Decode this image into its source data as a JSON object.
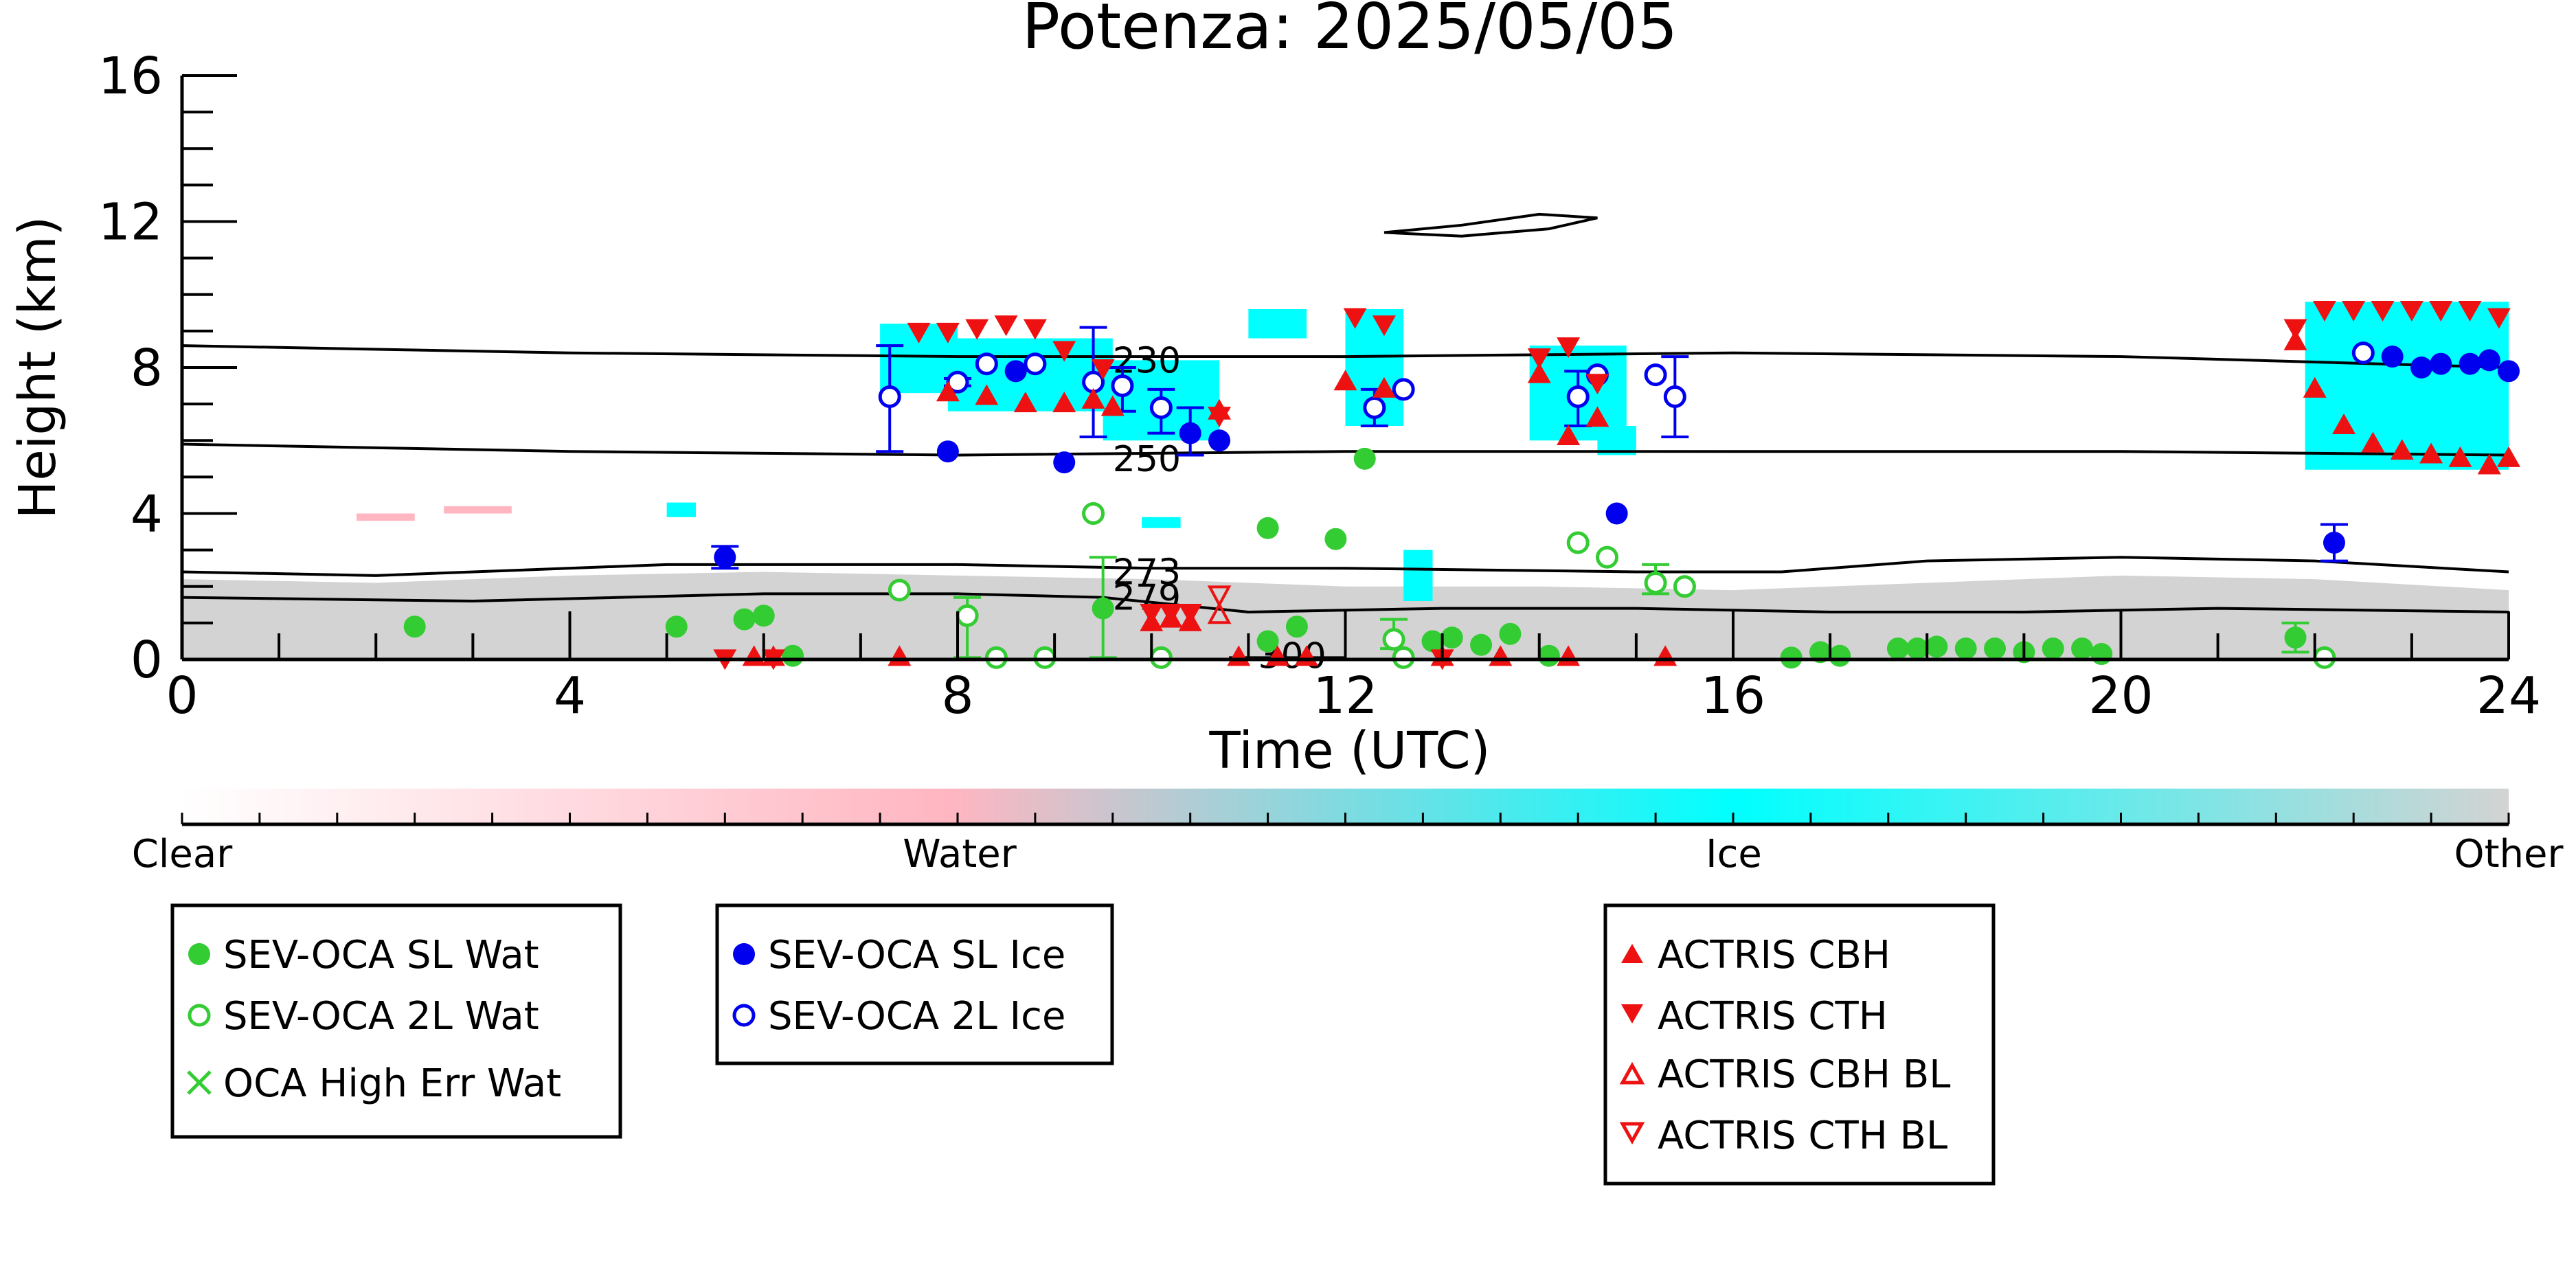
{
  "chart_data": {
    "type": "scatter",
    "title": "Potenza: 2025/05/05",
    "xlabel": "Time (UTC)",
    "ylabel": "Height (km)",
    "xlim": [
      0,
      24
    ],
    "ylim": [
      0,
      16
    ],
    "xticks": [
      0,
      4,
      8,
      12,
      16,
      20,
      24
    ],
    "yticks": [
      0,
      4,
      8,
      12,
      16
    ],
    "grid": false,
    "colorbar": {
      "labels": [
        {
          "text": "Clear",
          "pos": 0
        },
        {
          "text": "Water",
          "pos": 0.33
        },
        {
          "text": "Ice",
          "pos": 0.667
        },
        {
          "text": "Other",
          "pos": 1
        }
      ],
      "colors": {
        "clear": "#ffffff",
        "water": "#ffb6c1",
        "ice": "#00ffff",
        "other": "#d3d3d3"
      }
    },
    "contours": [
      {
        "label": "230",
        "points": [
          [
            0,
            8.6
          ],
          [
            4,
            8.4
          ],
          [
            8,
            8.3
          ],
          [
            12,
            8.3
          ],
          [
            16,
            8.4
          ],
          [
            20,
            8.3
          ],
          [
            24,
            8.0
          ]
        ],
        "label_at": [
          9.6,
          8.2
        ]
      },
      {
        "label": "250",
        "points": [
          [
            0,
            5.9
          ],
          [
            4,
            5.7
          ],
          [
            8,
            5.6
          ],
          [
            12,
            5.7
          ],
          [
            16,
            5.7
          ],
          [
            20,
            5.7
          ],
          [
            24,
            5.6
          ]
        ],
        "label_at": [
          9.6,
          5.5
        ]
      },
      {
        "label": "273",
        "points": [
          [
            0,
            2.4
          ],
          [
            2,
            2.3
          ],
          [
            5,
            2.6
          ],
          [
            8,
            2.6
          ],
          [
            10,
            2.5
          ],
          [
            12,
            2.5
          ],
          [
            15,
            2.4
          ],
          [
            16.5,
            2.4
          ],
          [
            18,
            2.7
          ],
          [
            20,
            2.8
          ],
          [
            22,
            2.7
          ],
          [
            24,
            2.4
          ]
        ],
        "label_at": [
          9.6,
          2.4
        ]
      },
      {
        "label": "279",
        "points": [
          [
            0,
            1.7
          ],
          [
            3,
            1.6
          ],
          [
            6,
            1.8
          ],
          [
            8,
            1.8
          ],
          [
            9.5,
            1.7
          ],
          [
            11,
            1.3
          ],
          [
            13,
            1.4
          ],
          [
            15,
            1.4
          ],
          [
            17,
            1.3
          ],
          [
            19,
            1.3
          ],
          [
            21,
            1.4
          ],
          [
            24,
            1.3
          ]
        ],
        "label_at": [
          9.6,
          1.7
        ]
      },
      {
        "label": "300",
        "points": [
          [
            10.8,
            0.05
          ],
          [
            12,
            0.05
          ]
        ],
        "label_at": [
          11.1,
          0.1
        ]
      }
    ],
    "high_contour": {
      "points": [
        [
          12.4,
          11.7
        ],
        [
          13.2,
          11.9
        ],
        [
          14,
          12.2
        ],
        [
          14.6,
          12.1
        ],
        [
          14.1,
          11.8
        ],
        [
          13.2,
          11.6
        ],
        [
          12.4,
          11.7
        ]
      ]
    },
    "cloud_mask": {
      "ice": [
        {
          "x0": 7.2,
          "x1": 8.0,
          "y0": 7.3,
          "y1": 9.2
        },
        {
          "x0": 7.9,
          "x1": 9.6,
          "y0": 6.8,
          "y1": 8.8
        },
        {
          "x0": 9.5,
          "x1": 10.7,
          "y0": 6.0,
          "y1": 8.2
        },
        {
          "x0": 11.0,
          "x1": 11.6,
          "y0": 8.8,
          "y1": 9.6
        },
        {
          "x0": 12.0,
          "x1": 12.6,
          "y0": 6.4,
          "y1": 9.6
        },
        {
          "x0": 13.9,
          "x1": 14.9,
          "y0": 6.0,
          "y1": 8.6
        },
        {
          "x0": 14.6,
          "x1": 15.0,
          "y0": 5.6,
          "y1": 6.4
        },
        {
          "x0": 21.9,
          "x1": 24.0,
          "y0": 5.2,
          "y1": 9.8
        },
        {
          "x0": 5.0,
          "x1": 5.3,
          "y0": 3.9,
          "y1": 4.3
        },
        {
          "x0": 9.9,
          "x1": 10.3,
          "y0": 3.6,
          "y1": 3.9
        },
        {
          "x0": 12.6,
          "x1": 12.9,
          "y0": 1.6,
          "y1": 3.0
        }
      ],
      "water": [
        {
          "x0": 1.8,
          "x1": 2.4,
          "y0": 3.8,
          "y1": 4.0
        },
        {
          "x0": 2.7,
          "x1": 3.4,
          "y0": 4.0,
          "y1": 4.2
        }
      ],
      "other_top": [
        [
          0,
          2.2
        ],
        [
          2,
          2.1
        ],
        [
          4,
          2.3
        ],
        [
          6,
          2.4
        ],
        [
          8,
          2.3
        ],
        [
          10,
          2.2
        ],
        [
          12,
          2.0
        ],
        [
          14,
          2.0
        ],
        [
          16,
          1.9
        ],
        [
          18,
          2.1
        ],
        [
          20,
          2.3
        ],
        [
          22,
          2.2
        ],
        [
          24,
          1.9
        ]
      ]
    },
    "series": [
      {
        "name": "SEV-OCA SL Wat",
        "marker": "filled-circle",
        "color": "#33cc33",
        "points": [
          [
            2.4,
            0.9
          ],
          [
            5.1,
            0.9
          ],
          [
            5.8,
            1.1
          ],
          [
            6.0,
            1.2
          ],
          [
            6.3,
            0.1
          ],
          [
            9.5,
            1.4
          ],
          [
            11.2,
            0.5
          ],
          [
            11.5,
            0.9
          ],
          [
            11.9,
            3.3
          ],
          [
            11.2,
            3.6
          ],
          [
            12.2,
            5.5
          ],
          [
            12.9,
            0.5
          ],
          [
            13.1,
            0.6
          ],
          [
            13.4,
            0.4
          ],
          [
            13.7,
            0.7
          ],
          [
            14.1,
            0.1
          ],
          [
            16.6,
            0.05
          ],
          [
            16.9,
            0.2
          ],
          [
            17.1,
            0.1
          ],
          [
            17.7,
            0.3
          ],
          [
            17.9,
            0.3
          ],
          [
            18.1,
            0.35
          ],
          [
            18.4,
            0.3
          ],
          [
            18.7,
            0.3
          ],
          [
            19.0,
            0.2
          ],
          [
            19.3,
            0.3
          ],
          [
            19.6,
            0.3
          ],
          [
            19.8,
            0.15
          ],
          [
            21.8,
            0.6
          ]
        ]
      },
      {
        "name": "SEV-OCA 2L Wat",
        "marker": "open-circle",
        "color": "#33cc33",
        "points": [
          [
            7.4,
            1.9
          ],
          [
            8.1,
            1.2
          ],
          [
            8.4,
            0.05
          ],
          [
            8.9,
            0.05
          ],
          [
            9.4,
            4.0
          ],
          [
            10.1,
            0.05
          ],
          [
            12.5,
            0.55
          ],
          [
            12.6,
            0.05
          ],
          [
            14.4,
            3.2
          ],
          [
            14.7,
            2.8
          ],
          [
            15.2,
            2.1
          ],
          [
            15.5,
            2.0
          ],
          [
            22.1,
            0.05
          ]
        ]
      },
      {
        "name": "OCA High Err Wat",
        "marker": "x",
        "color": "#33cc33",
        "points": []
      },
      {
        "name": "SEV-OCA SL Ice",
        "marker": "filled-circle",
        "color": "#0000ee",
        "points": [
          [
            5.6,
            2.8
          ],
          [
            7.9,
            5.7
          ],
          [
            8.6,
            7.9
          ],
          [
            9.1,
            5.4
          ],
          [
            10.4,
            6.2
          ],
          [
            10.7,
            6.0
          ],
          [
            14.8,
            4.0
          ],
          [
            22.2,
            3.2
          ],
          [
            22.8,
            8.3
          ],
          [
            23.1,
            8.0
          ],
          [
            23.3,
            8.1
          ],
          [
            23.6,
            8.1
          ],
          [
            23.8,
            8.2
          ],
          [
            24.0,
            7.9
          ]
        ]
      },
      {
        "name": "SEV-OCA 2L Ice",
        "marker": "open-circle",
        "color": "#0000ee",
        "points": [
          [
            7.3,
            7.2
          ],
          [
            8.0,
            7.6
          ],
          [
            8.3,
            8.1
          ],
          [
            8.8,
            8.1
          ],
          [
            9.4,
            7.6
          ],
          [
            9.7,
            7.5
          ],
          [
            10.1,
            6.9
          ],
          [
            12.3,
            6.9
          ],
          [
            12.6,
            7.4
          ],
          [
            14.4,
            7.2
          ],
          [
            14.6,
            7.8
          ],
          [
            15.2,
            7.8
          ],
          [
            15.4,
            7.2
          ],
          [
            22.5,
            8.4
          ]
        ]
      },
      {
        "name": "ACTRIS CBH",
        "marker": "triangle-up",
        "color": "#ee1111",
        "points": [
          [
            7.9,
            7.3
          ],
          [
            8.3,
            7.2
          ],
          [
            8.7,
            7.0
          ],
          [
            9.1,
            7.0
          ],
          [
            9.4,
            7.1
          ],
          [
            9.6,
            6.9
          ],
          [
            10.0,
            1.0
          ],
          [
            10.2,
            1.1
          ],
          [
            10.4,
            1.0
          ],
          [
            10.7,
            6.8
          ],
          [
            12.0,
            7.6
          ],
          [
            12.4,
            7.4
          ],
          [
            14.0,
            7.8
          ],
          [
            14.3,
            6.1
          ],
          [
            14.6,
            6.6
          ],
          [
            21.8,
            8.7
          ],
          [
            22.0,
            7.4
          ],
          [
            22.3,
            6.4
          ],
          [
            22.6,
            5.9
          ],
          [
            22.9,
            5.7
          ],
          [
            23.2,
            5.6
          ],
          [
            23.5,
            5.5
          ],
          [
            23.8,
            5.3
          ],
          [
            24.0,
            5.5
          ],
          [
            5.9,
            0.05
          ],
          [
            6.1,
            0.05
          ],
          [
            7.4,
            0.05
          ],
          [
            10.9,
            0.05
          ],
          [
            11.3,
            0.05
          ],
          [
            11.6,
            0.05
          ],
          [
            13.0,
            0.05
          ],
          [
            13.6,
            0.05
          ],
          [
            14.3,
            0.05
          ],
          [
            15.3,
            0.05
          ]
        ]
      },
      {
        "name": "ACTRIS CTH",
        "marker": "triangle-down",
        "color": "#ee1111",
        "points": [
          [
            7.6,
            9.0
          ],
          [
            7.9,
            9.0
          ],
          [
            8.2,
            9.1
          ],
          [
            8.5,
            9.2
          ],
          [
            8.8,
            9.1
          ],
          [
            9.1,
            8.5
          ],
          [
            9.5,
            8.0
          ],
          [
            10.0,
            1.3
          ],
          [
            10.2,
            1.3
          ],
          [
            10.4,
            1.3
          ],
          [
            10.7,
            6.7
          ],
          [
            12.1,
            9.4
          ],
          [
            12.4,
            9.2
          ],
          [
            14.0,
            8.3
          ],
          [
            14.3,
            8.6
          ],
          [
            14.6,
            7.6
          ],
          [
            21.8,
            9.1
          ],
          [
            22.1,
            9.6
          ],
          [
            22.4,
            9.6
          ],
          [
            22.7,
            9.6
          ],
          [
            23.0,
            9.6
          ],
          [
            23.3,
            9.6
          ],
          [
            23.6,
            9.6
          ],
          [
            23.9,
            9.4
          ],
          [
            5.6,
            0.05
          ],
          [
            6.1,
            0.05
          ],
          [
            13.0,
            0.05
          ]
        ]
      },
      {
        "name": "ACTRIS CBH BL",
        "marker": "open-triangle-up",
        "color": "#ee1111",
        "points": [
          [
            10.7,
            1.2
          ]
        ]
      },
      {
        "name": "ACTRIS CTH BL",
        "marker": "open-triangle-down",
        "color": "#ee1111",
        "points": [
          [
            10.7,
            1.8
          ]
        ]
      }
    ],
    "error_bars": [
      {
        "x": 5.6,
        "y0": 2.5,
        "y1": 3.1,
        "color": "#0000ee"
      },
      {
        "x": 7.3,
        "y0": 5.7,
        "y1": 8.6,
        "color": "#0000ee"
      },
      {
        "x": 8.0,
        "y0": 7.5,
        "y1": 7.7,
        "color": "#0000ee"
      },
      {
        "x": 9.4,
        "y0": 6.1,
        "y1": 9.1,
        "color": "#0000ee"
      },
      {
        "x": 9.7,
        "y0": 6.8,
        "y1": 8.0,
        "color": "#0000ee"
      },
      {
        "x": 10.1,
        "y0": 6.2,
        "y1": 7.4,
        "color": "#0000ee"
      },
      {
        "x": 10.4,
        "y0": 5.6,
        "y1": 6.9,
        "color": "#0000ee"
      },
      {
        "x": 12.3,
        "y0": 6.4,
        "y1": 7.4,
        "color": "#0000ee"
      },
      {
        "x": 14.4,
        "y0": 6.4,
        "y1": 7.9,
        "color": "#0000ee"
      },
      {
        "x": 15.4,
        "y0": 6.1,
        "y1": 8.3,
        "color": "#0000ee"
      },
      {
        "x": 22.2,
        "y0": 2.7,
        "y1": 3.7,
        "color": "#0000ee"
      },
      {
        "x": 8.1,
        "y0": 0.05,
        "y1": 1.7,
        "color": "#33cc33"
      },
      {
        "x": 9.5,
        "y0": 0.05,
        "y1": 2.8,
        "color": "#33cc33"
      },
      {
        "x": 12.5,
        "y0": 0.3,
        "y1": 1.1,
        "color": "#33cc33"
      },
      {
        "x": 15.2,
        "y0": 1.8,
        "y1": 2.6,
        "color": "#33cc33"
      },
      {
        "x": 21.8,
        "y0": 0.2,
        "y1": 1.0,
        "color": "#33cc33"
      }
    ],
    "legends": [
      {
        "id": "wat",
        "entries": [
          "SEV-OCA SL Wat",
          "SEV-OCA 2L Wat",
          "OCA High Err Wat"
        ]
      },
      {
        "id": "ice",
        "entries": [
          "SEV-OCA SL Ice",
          "SEV-OCA 2L Ice"
        ]
      },
      {
        "id": "actris",
        "entries": [
          "ACTRIS CBH",
          "ACTRIS CTH",
          "ACTRIS CBH BL",
          "ACTRIS CTH BL"
        ]
      }
    ]
  }
}
